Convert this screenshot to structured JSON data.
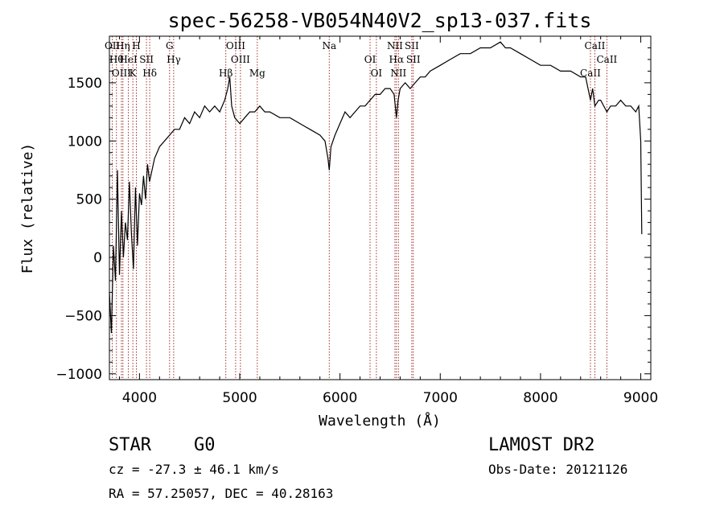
{
  "chart_data": {
    "type": "line",
    "title": "spec-56258-VB054N40V2_sp13-037.fits",
    "xlabel": "Wavelength (Å)",
    "ylabel": "Flux (relative)",
    "xlim": [
      3700,
      9100
    ],
    "ylim": [
      -1050,
      1900
    ],
    "xticks": [
      4000,
      5000,
      6000,
      7000,
      8000,
      9000
    ],
    "yticks": [
      -1000,
      -500,
      0,
      500,
      1000,
      1500
    ],
    "grid": false,
    "series": [
      {
        "x": [
          3700,
          3720,
          3740,
          3760,
          3780,
          3800,
          3820,
          3840,
          3860,
          3880,
          3900,
          3920,
          3940,
          3960,
          3980,
          4000,
          4020,
          4040,
          4060,
          4080,
          4100,
          4150,
          4200,
          4250,
          4300,
          4350,
          4400,
          4450,
          4500,
          4550,
          4600,
          4650,
          4700,
          4750,
          4800,
          4850,
          4880,
          4900,
          4920,
          4950,
          5000,
          5050,
          5100,
          5150,
          5200,
          5250,
          5300,
          5400,
          5500,
          5600,
          5700,
          5800,
          5850,
          5880,
          5893,
          5910,
          5950,
          6000,
          6050,
          6100,
          6150,
          6200,
          6250,
          6300,
          6350,
          6400,
          6450,
          6500,
          6540,
          6563,
          6580,
          6600,
          6650,
          6700,
          6750,
          6800,
          6850,
          6900,
          7000,
          7100,
          7200,
          7300,
          7400,
          7500,
          7600,
          7650,
          7700,
          7800,
          7900,
          8000,
          8100,
          8200,
          8300,
          8400,
          8450,
          8498,
          8520,
          8542,
          8580,
          8600,
          8662,
          8700,
          8750,
          8800,
          8850,
          8900,
          8950,
          8980,
          9000,
          9010
        ],
        "values": [
          -300,
          -650,
          100,
          -200,
          750,
          -150,
          400,
          0,
          300,
          150,
          650,
          200,
          -100,
          600,
          100,
          550,
          450,
          700,
          500,
          800,
          650,
          850,
          950,
          1000,
          1050,
          1100,
          1100,
          1200,
          1150,
          1250,
          1200,
          1300,
          1250,
          1300,
          1250,
          1350,
          1450,
          1550,
          1300,
          1200,
          1150,
          1200,
          1250,
          1250,
          1300,
          1250,
          1250,
          1200,
          1200,
          1150,
          1100,
          1050,
          1000,
          850,
          750,
          950,
          1050,
          1150,
          1250,
          1200,
          1250,
          1300,
          1300,
          1350,
          1400,
          1400,
          1450,
          1450,
          1400,
          1200,
          1350,
          1450,
          1500,
          1450,
          1500,
          1550,
          1550,
          1600,
          1650,
          1700,
          1750,
          1750,
          1800,
          1800,
          1850,
          1800,
          1800,
          1750,
          1700,
          1650,
          1650,
          1600,
          1600,
          1550,
          1550,
          1350,
          1450,
          1300,
          1350,
          1350,
          1250,
          1300,
          1300,
          1350,
          1300,
          1300,
          1250,
          1300,
          1000,
          200
        ]
      }
    ],
    "lines": [
      {
        "x": 3729,
        "label": "OII"
      },
      {
        "x": 3770,
        "label": "Hθ"
      },
      {
        "x": 3820,
        "label": "OIII"
      },
      {
        "x": 3835,
        "label": "Hη"
      },
      {
        "x": 3889,
        "label": "HeI"
      },
      {
        "x": 3934,
        "label": "K"
      },
      {
        "x": 3969,
        "label": "H"
      },
      {
        "x": 4070,
        "label": "SII"
      },
      {
        "x": 4102,
        "label": "Hδ"
      },
      {
        "x": 4300,
        "label": "G"
      },
      {
        "x": 4341,
        "label": "Hγ"
      },
      {
        "x": 4861,
        "label": "Hβ"
      },
      {
        "x": 4959,
        "label": "OIII"
      },
      {
        "x": 5007,
        "label": "OIII"
      },
      {
        "x": 5175,
        "label": "Mg"
      },
      {
        "x": 5893,
        "label": "Na"
      },
      {
        "x": 6300,
        "label": "OI"
      },
      {
        "x": 6363,
        "label": "OI"
      },
      {
        "x": 6548,
        "label": "NII"
      },
      {
        "x": 6563,
        "label": "Hα"
      },
      {
        "x": 6583,
        "label": "NII"
      },
      {
        "x": 6716,
        "label": "SII"
      },
      {
        "x": 6731,
        "label": "SII"
      },
      {
        "x": 8498,
        "label": "CaII"
      },
      {
        "x": 8542,
        "label": "CaII"
      },
      {
        "x": 8662,
        "label": "CaII"
      }
    ]
  },
  "info": {
    "class": "STAR",
    "subclass": "G0",
    "survey": "LAMOST DR2",
    "cz": "cz = -27.3 ± 46.1 km/s",
    "obs_date": "Obs-Date: 20121126",
    "coords": "RA =  57.25057, DEC =  40.28163"
  }
}
